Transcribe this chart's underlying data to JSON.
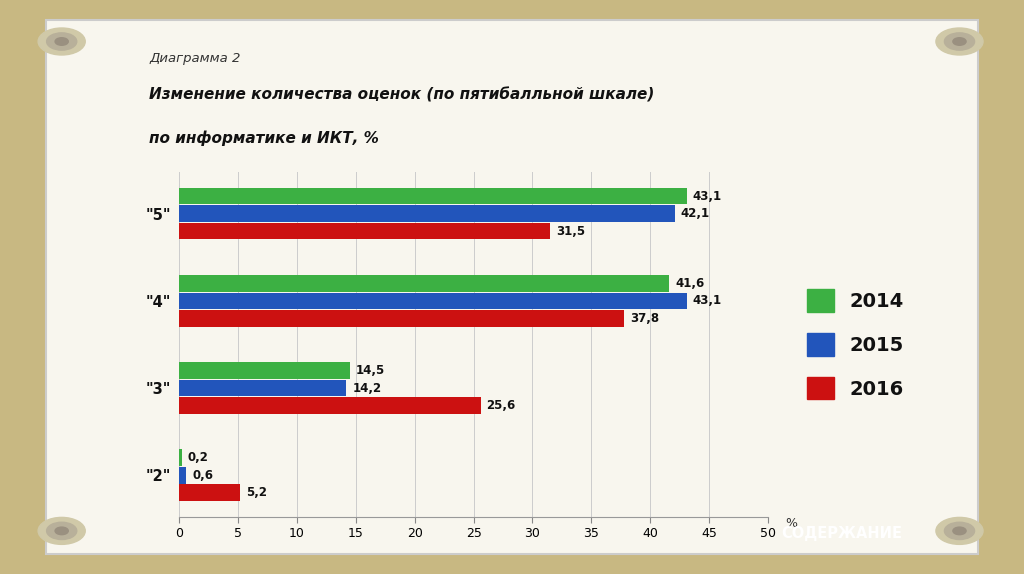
{
  "title_small": "Диаграмма 2",
  "title_main_line1": "Изменение количества оценок (по пятибалльной шкале)",
  "title_main_line2": "по информатике и ИКТ, %",
  "categories": [
    "\"5\"",
    "\"4\"",
    "\"3\"",
    "\"2\""
  ],
  "series": {
    "2014": [
      43.1,
      41.6,
      14.5,
      0.2
    ],
    "2015": [
      42.1,
      43.1,
      14.2,
      0.6
    ],
    "2016": [
      31.5,
      37.8,
      25.6,
      5.2
    ]
  },
  "colors": {
    "2014": "#3CB043",
    "2015": "#2255BB",
    "2016": "#CC1111"
  },
  "xlim": [
    0,
    50
  ],
  "xticks": [
    0,
    5,
    10,
    15,
    20,
    25,
    30,
    35,
    40,
    45,
    50
  ],
  "xlabel": "%",
  "bg_outer": "#C8B882",
  "bg_inner": "#F8F6EE",
  "button_text": "СОДЕРЖАНИЕ",
  "button_color": "#9B1C1C",
  "button_text_color": "#FFFFFF"
}
